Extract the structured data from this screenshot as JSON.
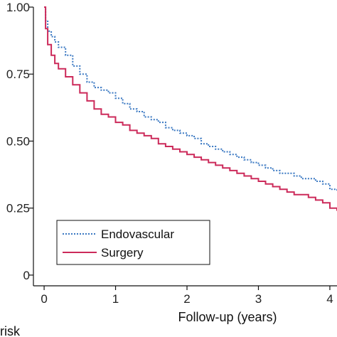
{
  "chart_data": {
    "type": "line",
    "title": "",
    "xlabel": "Follow-up (years)",
    "ylabel": "",
    "xlim": [
      -0.15,
      4.1
    ],
    "ylim": [
      -0.04,
      1.0
    ],
    "x_ticks": [
      0,
      1,
      2,
      3,
      4
    ],
    "x_tick_labels": [
      "0",
      "1",
      "2",
      "3",
      "4"
    ],
    "y_ticks": [
      0,
      0.25,
      0.5,
      0.75,
      1.0
    ],
    "y_tick_labels": [
      "0",
      "0.25",
      "0.50",
      "0.75",
      "1.00"
    ],
    "grid": false,
    "legend_position": "bottom-left",
    "bottom_text": "risk",
    "series": [
      {
        "name": "Endovascular",
        "color": "#3a78c2",
        "style": "dotted",
        "x": [
          0,
          0.02,
          0.05,
          0.1,
          0.15,
          0.2,
          0.3,
          0.4,
          0.5,
          0.6,
          0.7,
          0.8,
          0.9,
          1.0,
          1.1,
          1.2,
          1.3,
          1.4,
          1.5,
          1.6,
          1.7,
          1.8,
          1.9,
          2.0,
          2.1,
          2.2,
          2.3,
          2.4,
          2.5,
          2.6,
          2.7,
          2.8,
          2.9,
          3.0,
          3.1,
          3.2,
          3.3,
          3.4,
          3.5,
          3.6,
          3.7,
          3.8,
          3.9,
          4.0,
          4.1
        ],
        "y": [
          1.0,
          0.95,
          0.91,
          0.89,
          0.87,
          0.85,
          0.82,
          0.78,
          0.75,
          0.72,
          0.7,
          0.69,
          0.68,
          0.66,
          0.64,
          0.62,
          0.61,
          0.59,
          0.58,
          0.57,
          0.55,
          0.54,
          0.53,
          0.52,
          0.51,
          0.49,
          0.48,
          0.47,
          0.46,
          0.45,
          0.44,
          0.43,
          0.42,
          0.41,
          0.4,
          0.39,
          0.38,
          0.38,
          0.37,
          0.36,
          0.36,
          0.35,
          0.34,
          0.32,
          0.31
        ]
      },
      {
        "name": "Surgery",
        "color": "#cc2a5a",
        "style": "solid",
        "x": [
          0,
          0.02,
          0.05,
          0.1,
          0.15,
          0.2,
          0.3,
          0.4,
          0.5,
          0.6,
          0.7,
          0.8,
          0.9,
          1.0,
          1.1,
          1.2,
          1.3,
          1.4,
          1.5,
          1.6,
          1.7,
          1.8,
          1.9,
          2.0,
          2.1,
          2.2,
          2.3,
          2.4,
          2.5,
          2.6,
          2.7,
          2.8,
          2.9,
          3.0,
          3.1,
          3.2,
          3.3,
          3.4,
          3.5,
          3.6,
          3.7,
          3.8,
          3.9,
          4.0,
          4.1
        ],
        "y": [
          1.0,
          0.92,
          0.86,
          0.82,
          0.79,
          0.77,
          0.74,
          0.71,
          0.68,
          0.65,
          0.62,
          0.6,
          0.59,
          0.57,
          0.56,
          0.54,
          0.53,
          0.52,
          0.51,
          0.49,
          0.48,
          0.47,
          0.46,
          0.45,
          0.44,
          0.43,
          0.42,
          0.41,
          0.4,
          0.39,
          0.38,
          0.37,
          0.36,
          0.35,
          0.34,
          0.33,
          0.32,
          0.31,
          0.3,
          0.3,
          0.29,
          0.28,
          0.27,
          0.25,
          0.24
        ]
      }
    ]
  }
}
